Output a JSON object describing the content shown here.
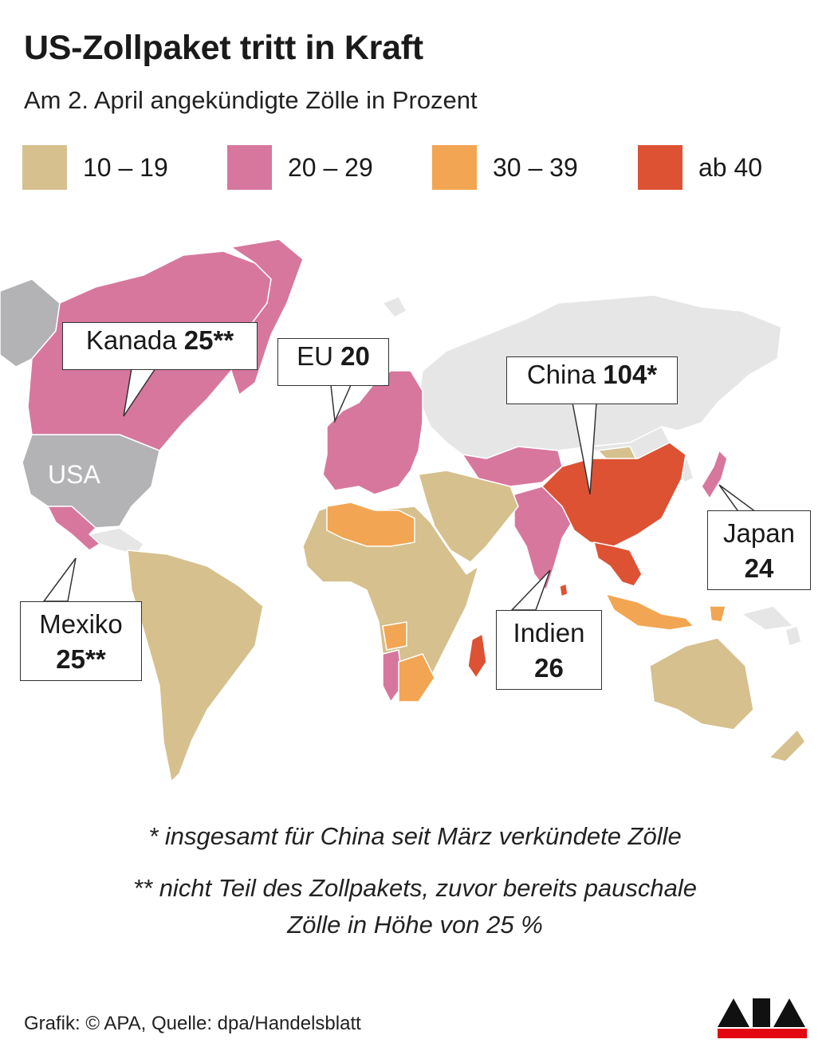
{
  "header": {
    "title": "US-Zollpaket tritt in Kraft",
    "subtitle": "Am 2. April angekündigte Zölle in Prozent"
  },
  "legend": [
    {
      "label": "10 – 19",
      "color": "#d6c08e"
    },
    {
      "label": "20 – 29",
      "color": "#d7779e"
    },
    {
      "label": "30 – 39",
      "color": "#f2a552"
    },
    {
      "label": "ab 40",
      "color": "#dc5233"
    }
  ],
  "colors": {
    "no_data": "#e6e6e6",
    "usa": "#b3b3b5",
    "border": "#ffffff"
  },
  "map": {
    "usa_label": "USA",
    "callouts": {
      "kanada": {
        "name": "Kanada",
        "value": "25**"
      },
      "eu": {
        "name": "EU",
        "value": "20"
      },
      "china": {
        "name": "China",
        "value": "104*"
      },
      "mexiko": {
        "name": "Mexiko",
        "value": "25**"
      },
      "indien": {
        "name": "Indien",
        "value": "26"
      },
      "japan": {
        "name": "Japan",
        "value": "24"
      }
    }
  },
  "notes": {
    "note1": "* insgesamt für China seit März verkündete Zölle",
    "note2_line1": "** nicht Teil des Zollpakets, zuvor bereits pauschale",
    "note2_line2": "Zölle in Höhe von 25 %"
  },
  "footer": {
    "source": "Grafik: © APA, Quelle: dpa/Handelsblatt",
    "logo": "APA"
  }
}
